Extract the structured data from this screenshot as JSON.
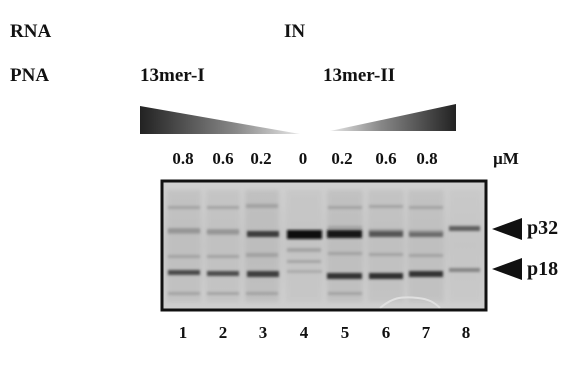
{
  "labels": {
    "rna": "RNA",
    "in": "IN",
    "pna": "PNA",
    "pna_left": "13mer-I",
    "pna_right": "13mer-II",
    "unit": "μM"
  },
  "concentrations": [
    "0.8",
    "0.6",
    "0.2",
    "0",
    "0.2",
    "0.6",
    "0.8"
  ],
  "lanes": [
    "1",
    "2",
    "3",
    "4",
    "5",
    "6",
    "7",
    "8"
  ],
  "bands": [
    {
      "label": "p32"
    },
    {
      "label": "p18"
    }
  ]
}
